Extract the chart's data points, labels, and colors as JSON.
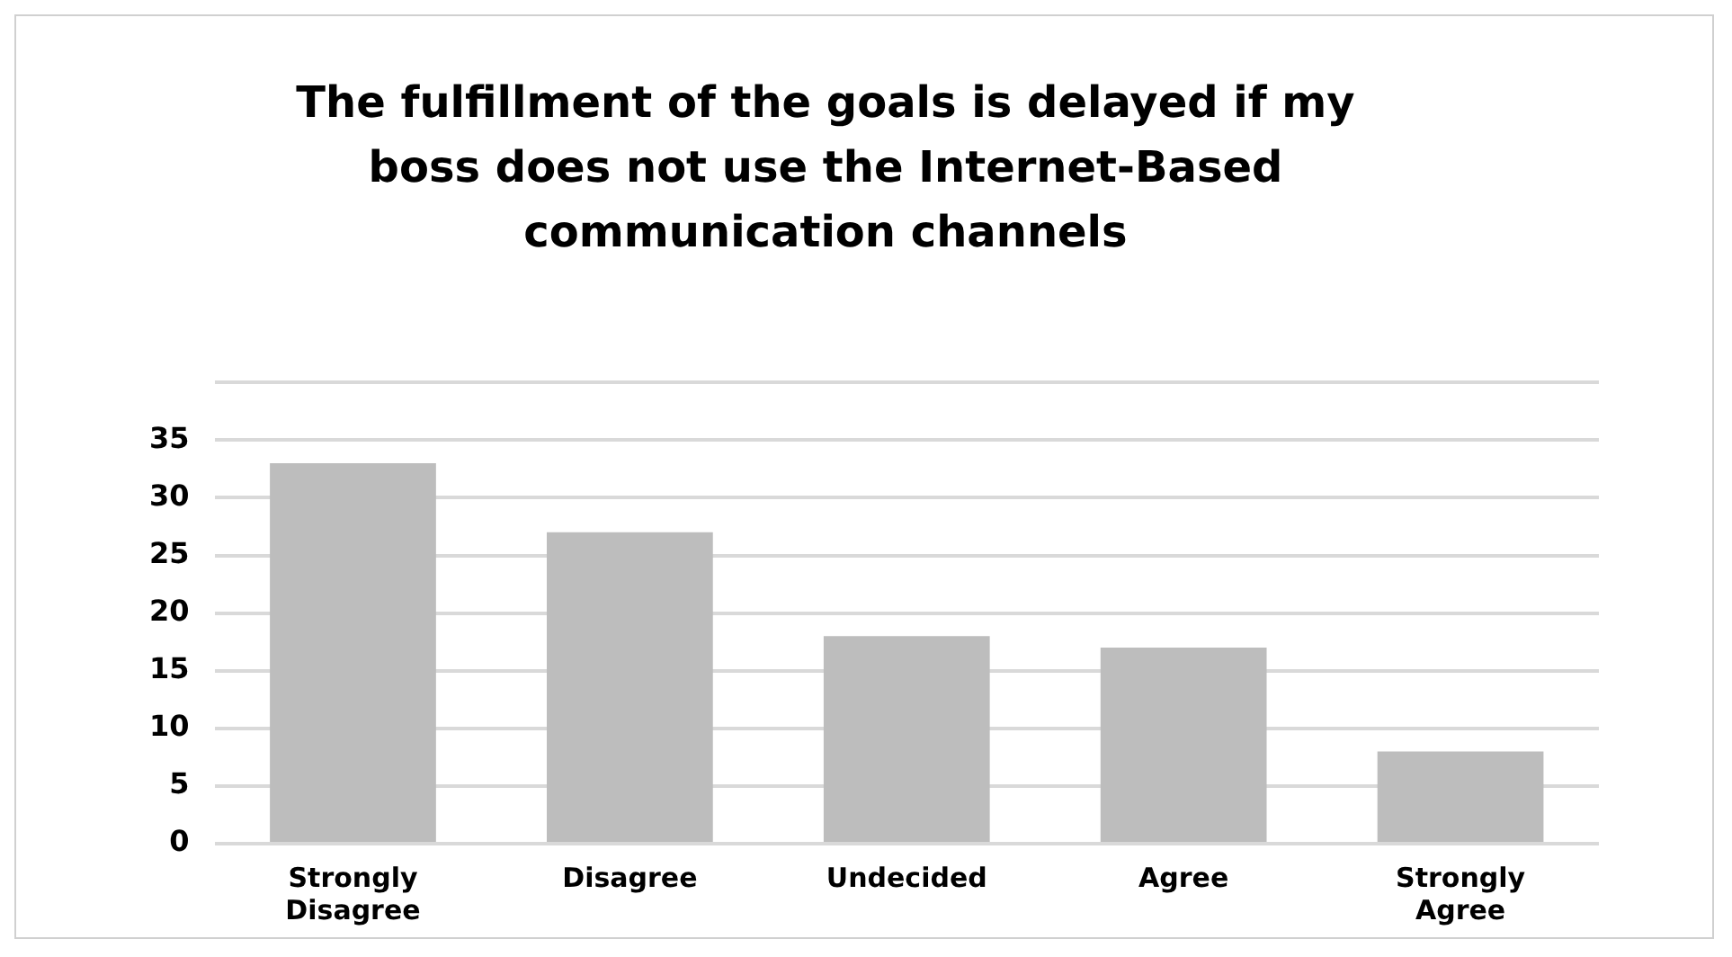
{
  "chart_data": {
    "type": "bar",
    "title": "The fulfillment of the goals is delayed if my boss does not use the Internet-Based communication channels",
    "categories": [
      "Strongly Disagree",
      "Disagree",
      "Undecided",
      "Agree",
      "Strongly Agree"
    ],
    "values": [
      33,
      27,
      18,
      17,
      8
    ],
    "color": "#bdbdbd",
    "ylim": [
      0,
      40
    ],
    "yticks": [
      0,
      5,
      10,
      15,
      20,
      25,
      30,
      35,
      {
        "value": 40,
        "label": null
      }
    ],
    "grid": "y",
    "legend": false
  }
}
